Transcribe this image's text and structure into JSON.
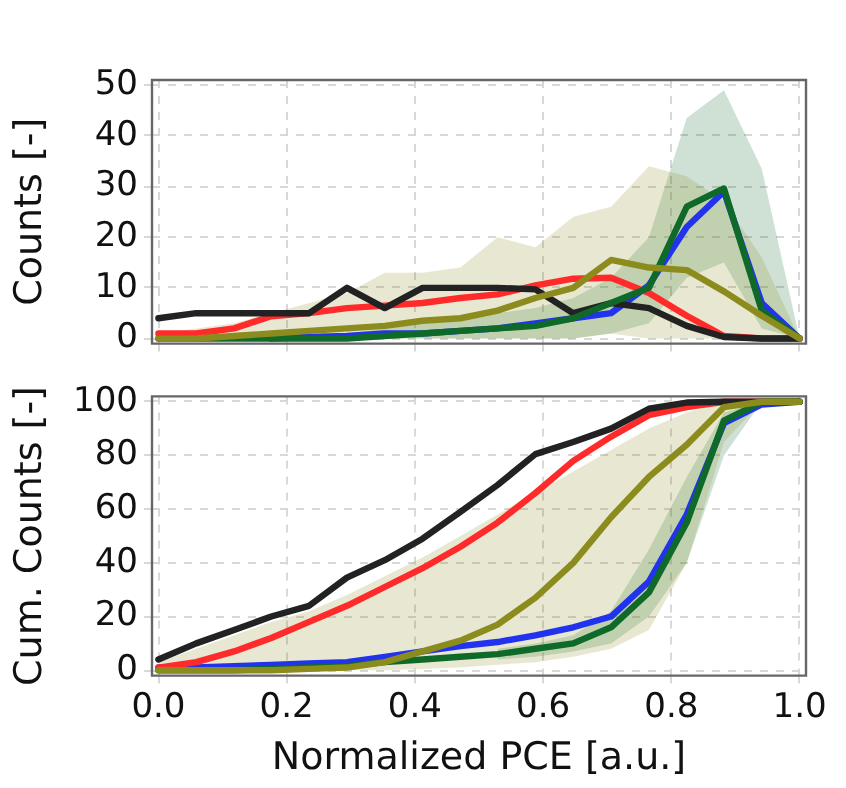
{
  "chart_data": [
    {
      "type": "line",
      "ylabel": "Counts [-]",
      "x": [
        0,
        0.059,
        0.118,
        0.176,
        0.235,
        0.294,
        0.353,
        0.412,
        0.471,
        0.529,
        0.588,
        0.647,
        0.706,
        0.765,
        0.824,
        0.882,
        0.941,
        1.0
      ],
      "xlim": [
        -0.01,
        1.01
      ],
      "xticks": [
        0,
        0.2,
        0.4,
        0.6,
        0.8,
        1.0
      ],
      "ylim": [
        -1,
        51
      ],
      "yticks": [
        0,
        10,
        20,
        30,
        40,
        50
      ],
      "grid": true,
      "tick_labels": "y",
      "line_style": "solid",
      "marker": "none",
      "series": [
        {
          "color": "#8c8c1e",
          "values": [
            0,
            0,
            0.5,
            1,
            1.5,
            2,
            2.5,
            3.5,
            4,
            5.5,
            8,
            10,
            15.5,
            14,
            13.5,
            9.3,
            4.5,
            0
          ],
          "lower": [
            0,
            0,
            0,
            0,
            0,
            0,
            0,
            0,
            0,
            0,
            0,
            0,
            1,
            0,
            0,
            0,
            0,
            0
          ],
          "upper": [
            1,
            2,
            3,
            5,
            7,
            9,
            13,
            13,
            14,
            20,
            18,
            24,
            26,
            34,
            32,
            27,
            16,
            0
          ]
        },
        {
          "color": "#0f6a2a",
          "values": [
            0,
            0,
            0,
            0,
            0,
            0,
            0.5,
            1,
            1.5,
            2,
            2.5,
            4,
            7,
            10,
            26,
            29.6,
            5.5,
            0
          ],
          "lower": [
            0,
            0,
            0,
            0,
            0,
            0,
            0,
            0,
            0,
            0,
            0,
            0,
            1,
            3,
            12,
            15,
            2,
            0
          ],
          "upper": [
            0,
            0,
            0,
            0,
            0,
            1,
            2,
            3,
            4,
            5,
            6,
            8,
            12,
            20,
            43.5,
            49,
            33.5,
            0
          ]
        },
        {
          "color": "#222222",
          "values": [
            4,
            5,
            5,
            5,
            5,
            10,
            6,
            10,
            10,
            10,
            9.7,
            5,
            7,
            6,
            2.5,
            0.3,
            0,
            0
          ]
        },
        {
          "color": "#ff2a2a",
          "values": [
            1,
            1,
            2,
            4.4,
            5,
            6,
            6.5,
            7,
            8,
            8.7,
            10.5,
            11.8,
            12,
            9,
            4.5,
            0.5,
            0,
            0
          ]
        },
        {
          "color": "#2233ee",
          "values": [
            null,
            null,
            null,
            0,
            0.3,
            0.5,
            1,
            1,
            1.5,
            2,
            3,
            4,
            5,
            10.5,
            22,
            29,
            7,
            0
          ]
        }
      ]
    },
    {
      "type": "line",
      "xlabel": "Normalized PCE [a.u.]",
      "ylabel": "Cum. Counts [-]",
      "x": [
        0,
        0.059,
        0.118,
        0.176,
        0.235,
        0.294,
        0.353,
        0.412,
        0.471,
        0.529,
        0.588,
        0.647,
        0.706,
        0.765,
        0.824,
        0.882,
        0.941,
        1.0
      ],
      "xlim": [
        -0.01,
        1.01
      ],
      "xticks": [
        {
          "value": 0,
          "label": "0.0"
        },
        0.2,
        0.4,
        0.6,
        0.8,
        {
          "value": 1,
          "label": "1.0"
        }
      ],
      "ylim": [
        -2,
        102
      ],
      "yticks": [
        0,
        20,
        40,
        60,
        80,
        100
      ],
      "grid": true,
      "line_style": "solid",
      "marker": "none",
      "series": [
        {
          "color": "#8c8c1e",
          "values": [
            0,
            0,
            0,
            0,
            0.5,
            1,
            3,
            7,
            11,
            17,
            27,
            40,
            57,
            72,
            84,
            98,
            100,
            100
          ],
          "lower": [
            0,
            0,
            0,
            0,
            0,
            0,
            0,
            0.5,
            1,
            2,
            3,
            5,
            8,
            15,
            40,
            85,
            100,
            100
          ],
          "upper": [
            3,
            8,
            13,
            18,
            22,
            28,
            35,
            42,
            50,
            58,
            66,
            74,
            82,
            90,
            96,
            100,
            100,
            100
          ]
        },
        {
          "color": "#0f6a2a",
          "values": [
            0,
            0,
            0,
            0.5,
            1,
            1.5,
            3,
            4,
            5,
            6,
            8,
            10,
            16,
            29,
            55,
            93,
            100,
            100
          ],
          "lower": [
            null,
            null,
            null,
            null,
            null,
            null,
            null,
            null,
            null,
            4,
            5,
            7,
            10,
            20,
            40,
            80,
            100,
            100
          ],
          "upper": [
            null,
            null,
            null,
            null,
            null,
            null,
            null,
            null,
            null,
            8,
            10,
            13,
            22,
            45,
            72,
            96,
            100,
            100
          ]
        },
        {
          "color": "#222222",
          "values": [
            4,
            10,
            15,
            20,
            24,
            34.5,
            41,
            49,
            59,
            69,
            80.5,
            85,
            90,
            97.4,
            99.7,
            100,
            100,
            100
          ]
        },
        {
          "color": "#ff2a2a",
          "values": [
            1,
            3,
            7,
            12,
            18,
            24,
            31,
            38,
            46,
            55,
            66,
            78,
            87,
            95,
            98,
            100,
            100,
            100
          ]
        },
        {
          "color": "#2233ee",
          "values": [
            1,
            1,
            1.5,
            2,
            2.5,
            3,
            5,
            7,
            9,
            10.5,
            13,
            16,
            20,
            33,
            58,
            92,
            99,
            100
          ]
        }
      ]
    }
  ]
}
